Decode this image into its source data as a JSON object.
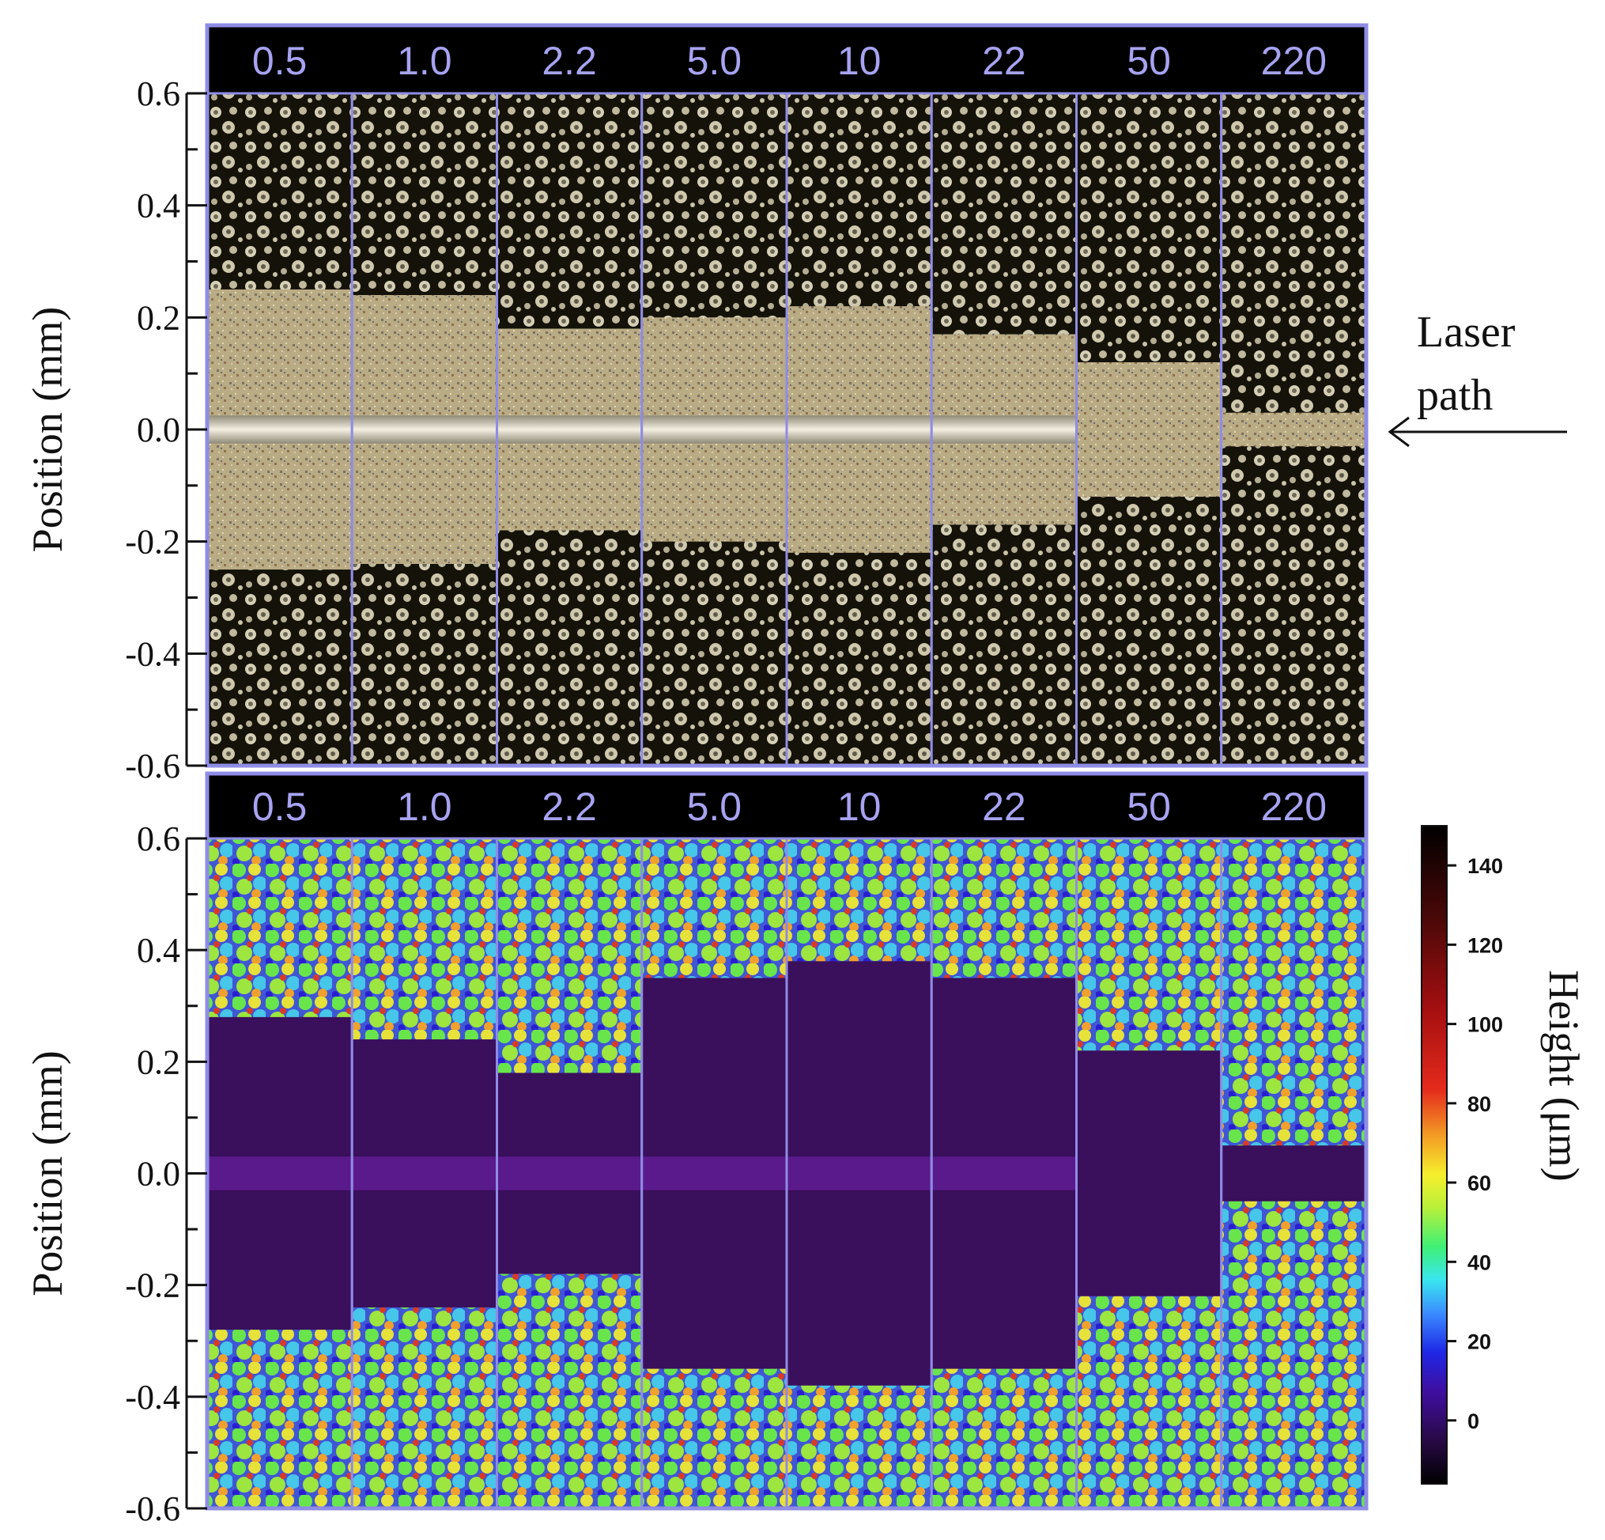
{
  "strip_labels": [
    "0.5",
    "1.0",
    "2.2",
    "5.0",
    "10",
    "22",
    "50",
    "220"
  ],
  "top_panel": {
    "ylabel": "Position (mm)",
    "y_ticks": [
      "0.6",
      "0.4",
      "0.2",
      "0.0",
      "-0.2",
      "-0.4",
      "-0.6"
    ],
    "band_half_width_mm": [
      0.25,
      0.24,
      0.18,
      0.2,
      0.22,
      0.17,
      0.12,
      0.03
    ]
  },
  "bottom_panel": {
    "ylabel": "Position (mm)",
    "y_ticks": [
      "0.6",
      "0.4",
      "0.2",
      "0.0",
      "-0.2",
      "-0.4",
      "-0.6"
    ],
    "band_half_width_mm": [
      0.28,
      0.24,
      0.18,
      0.35,
      0.38,
      0.35,
      0.22,
      0.05
    ]
  },
  "colorbar": {
    "title": "Height (μm)",
    "tick_values": [
      140,
      120,
      100,
      80,
      60,
      40,
      20,
      0
    ],
    "tick_labels": [
      "140",
      "120",
      "100",
      "80",
      "60",
      "40",
      "20",
      "0"
    ],
    "range": [
      -16,
      150
    ]
  },
  "laser": {
    "line1": "Laser",
    "line2": "path"
  },
  "colors": {
    "frame": "#8f8ce6",
    "label_bar": "#000000",
    "label_text": "#a7a3f2",
    "band_purple": "#3a0f5c",
    "track": "#e9e3d3"
  },
  "chart_data": [
    {
      "type": "heatmap",
      "title": "",
      "xlabel": "",
      "ylabel": "Position (mm)",
      "categories": [
        "0.5",
        "1.0",
        "2.2",
        "5.0",
        "10",
        "22",
        "50",
        "220"
      ],
      "ylim": [
        -0.6,
        0.6
      ],
      "y_ticks": [
        0.6,
        0.4,
        0.2,
        0.0,
        -0.2,
        -0.4,
        -0.6
      ],
      "series": [
        {
          "values": [
            0.25,
            0.24,
            0.18,
            0.2,
            0.22,
            0.17,
            0.12,
            0.03
          ]
        }
      ]
    },
    {
      "type": "heatmap",
      "title": "",
      "xlabel": "",
      "ylabel": "Position (mm)",
      "categories": [
        "0.5",
        "1.0",
        "2.2",
        "5.0",
        "10",
        "22",
        "50",
        "220"
      ],
      "ylim": [
        -0.6,
        0.6
      ],
      "y_ticks": [
        0.6,
        0.4,
        0.2,
        0.0,
        -0.2,
        -0.4,
        -0.6
      ],
      "colorbar_label": "Height (μm)",
      "colorbar_range": [
        -16,
        150
      ],
      "colorbar_ticks": [
        0,
        20,
        40,
        60,
        80,
        100,
        120,
        140
      ],
      "series": [
        {
          "values": [
            0.28,
            0.24,
            0.18,
            0.35,
            0.38,
            0.35,
            0.22,
            0.05
          ]
        }
      ]
    }
  ]
}
